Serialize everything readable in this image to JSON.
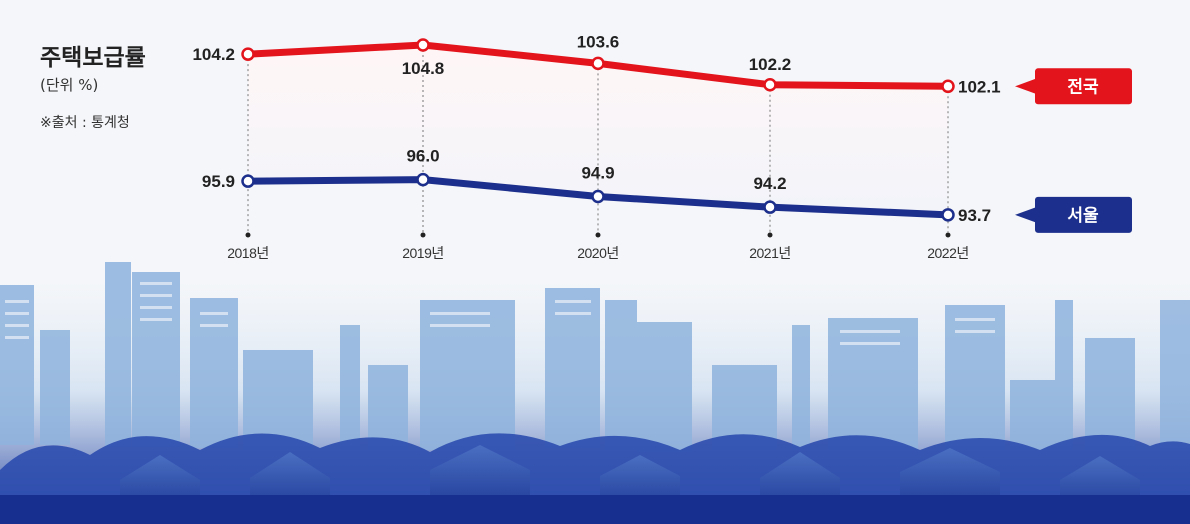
{
  "title": "주택보급률",
  "unit": "(단위 %)",
  "source": "※출처 : 통계청",
  "colors": {
    "nation": "#e3141b",
    "seoul": "#1d2f8c"
  },
  "chart_data": {
    "type": "line",
    "categories": [
      "2018년",
      "2019년",
      "2020년",
      "2021년",
      "2022년"
    ],
    "series": [
      {
        "name": "전국",
        "values": [
          104.2,
          104.8,
          103.6,
          102.2,
          102.1
        ]
      },
      {
        "name": "서울",
        "values": [
          95.9,
          96.0,
          94.9,
          94.2,
          93.7
        ]
      }
    ],
    "title": "주택보급률",
    "ylabel": "(단위 %)",
    "legend": "right"
  }
}
